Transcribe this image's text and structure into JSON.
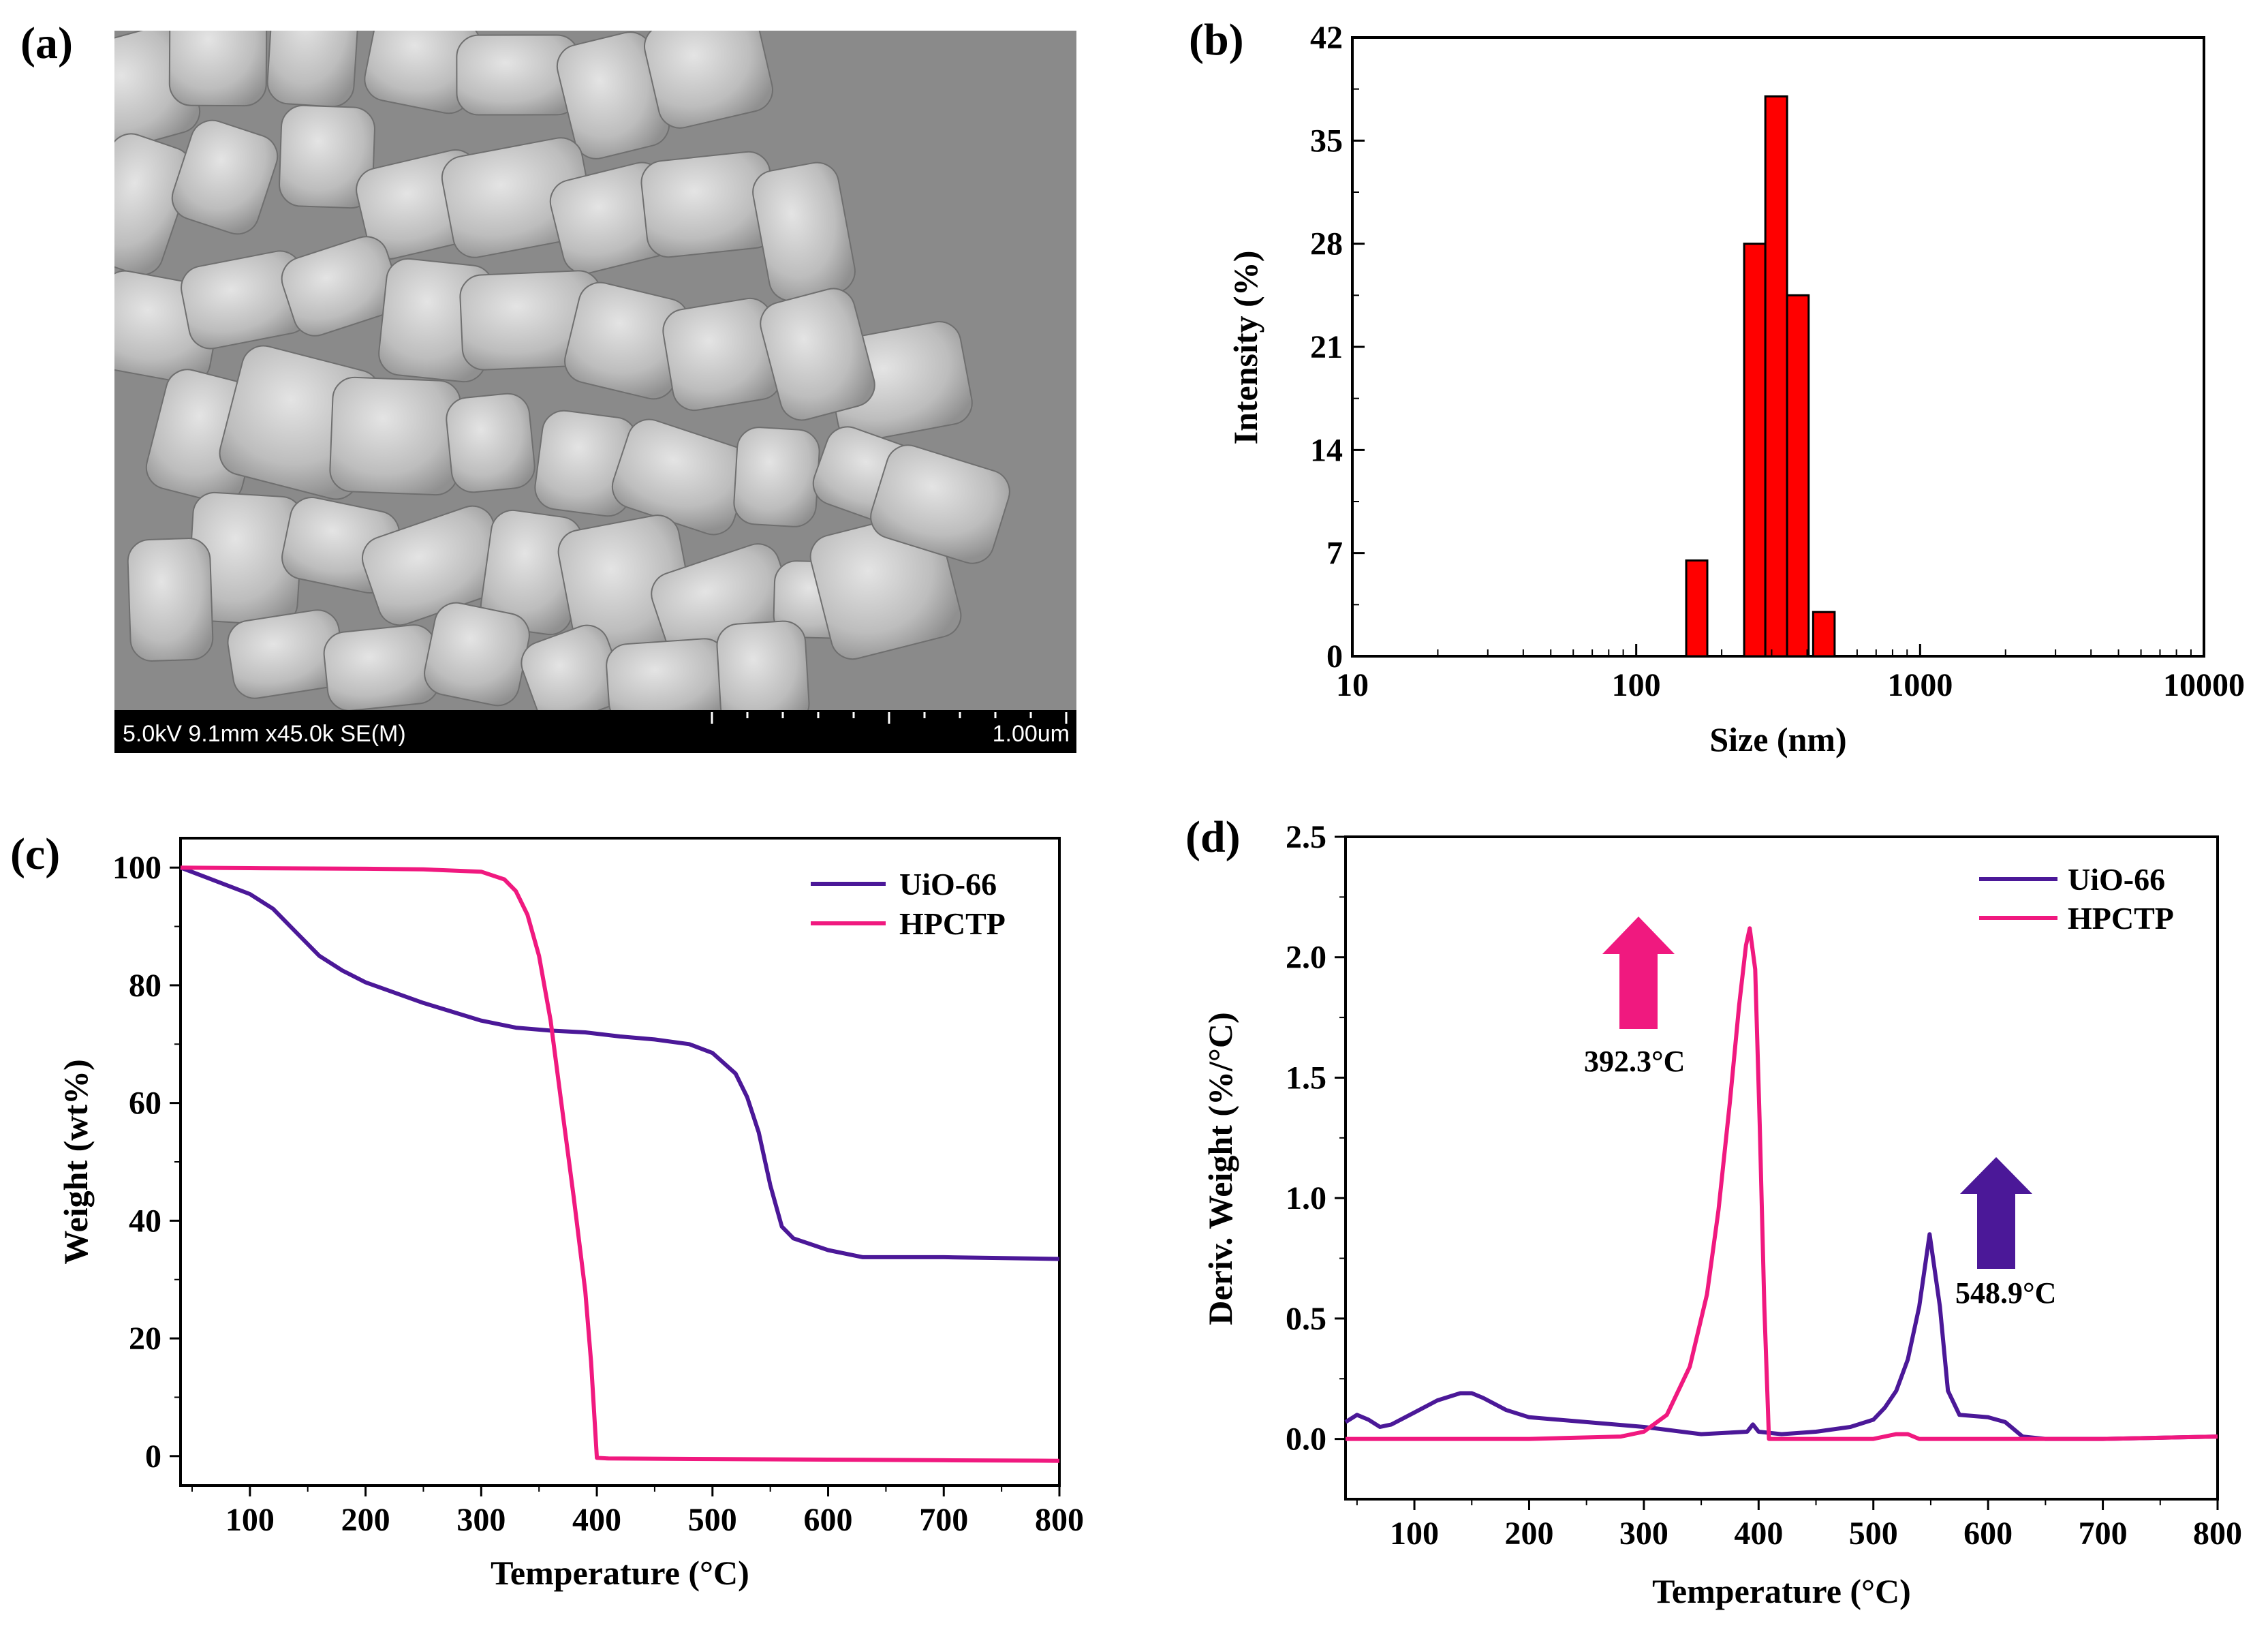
{
  "colors": {
    "uio66": "#4b1898",
    "hpctp": "#f0197f",
    "bar": "#ff0000",
    "sem_bg": "#8e8e8e"
  },
  "panel_a": {
    "label": "(a)",
    "sem_info": "5.0kV 9.1mm x45.0k SE(M)",
    "scale_bar": "1.00um"
  },
  "panel_b": {
    "label": "(b)"
  },
  "panel_c": {
    "label": "(c)"
  },
  "panel_d": {
    "label": "(d)"
  },
  "chart_data": [
    {
      "id": "b",
      "type": "bar",
      "xscale": "log",
      "xlabel": "Size (nm)",
      "ylabel": "Intensity (%)",
      "xlim": [
        10,
        10000
      ],
      "ylim": [
        0,
        42
      ],
      "xticks": [
        10,
        100,
        1000,
        10000
      ],
      "xtick_labels": [
        "10",
        "100",
        "1000",
        "10000"
      ],
      "yticks": [
        0,
        7,
        14,
        21,
        28,
        35,
        42
      ],
      "bars": [
        {
          "x0": 150,
          "x1": 178,
          "value": 6.5
        },
        {
          "x0": 240,
          "x1": 285,
          "value": 28
        },
        {
          "x0": 285,
          "x1": 340,
          "value": 38
        },
        {
          "x0": 340,
          "x1": 405,
          "value": 24.5
        },
        {
          "x0": 420,
          "x1": 500,
          "value": 3
        }
      ]
    },
    {
      "id": "c",
      "type": "line",
      "xlabel": "Temperature (°C)",
      "ylabel": "Weight (wt%)",
      "xlim": [
        40,
        800
      ],
      "ylim": [
        -5,
        105
      ],
      "xticks": [
        100,
        200,
        300,
        400,
        500,
        600,
        700,
        800
      ],
      "yticks": [
        0,
        20,
        40,
        60,
        80,
        100
      ],
      "legend_position": "top-right",
      "series": [
        {
          "name": "UiO-66",
          "color_key": "uio66",
          "x": [
            40,
            60,
            80,
            100,
            120,
            140,
            160,
            180,
            200,
            250,
            300,
            330,
            360,
            390,
            420,
            450,
            480,
            500,
            520,
            530,
            540,
            550,
            560,
            570,
            600,
            630,
            650,
            700,
            800
          ],
          "y": [
            100,
            98.5,
            97,
            95.5,
            93,
            89,
            85,
            82.5,
            80.5,
            77,
            74,
            72.8,
            72.3,
            72,
            71.3,
            70.8,
            70,
            68.5,
            65,
            61,
            55,
            46,
            39,
            37,
            35,
            33.8,
            33.8,
            33.8,
            33.5
          ]
        },
        {
          "name": "HPCTP",
          "color_key": "hpctp",
          "x": [
            40,
            100,
            200,
            250,
            300,
            320,
            330,
            340,
            350,
            360,
            370,
            380,
            390,
            395,
            400,
            410,
            500,
            600,
            700,
            800
          ],
          "y": [
            100,
            99.9,
            99.8,
            99.7,
            99.3,
            98,
            96,
            92,
            85,
            74,
            59,
            44,
            28,
            16,
            -0.3,
            -0.4,
            -0.5,
            -0.6,
            -0.7,
            -0.8
          ]
        }
      ]
    },
    {
      "id": "d",
      "type": "line",
      "xlabel": "Temperature (°C)",
      "ylabel": "Deriv. Weight (%/°C)",
      "xlim": [
        40,
        800
      ],
      "ylim": [
        -0.25,
        2.5
      ],
      "xticks": [
        100,
        200,
        300,
        400,
        500,
        600,
        700,
        800
      ],
      "yticks": [
        0.0,
        0.5,
        1.0,
        1.5,
        2.0,
        2.5
      ],
      "ytick_labels": [
        "0.0",
        "0.5",
        "1.0",
        "1.5",
        "2.0",
        "2.5"
      ],
      "legend_position": "top-right",
      "annotations": [
        {
          "text": "392.3°C",
          "x": 392.3,
          "color_key": "hpctp"
        },
        {
          "text": "548.9°C",
          "x": 548.9,
          "color_key": "uio66"
        }
      ],
      "series": [
        {
          "name": "UiO-66",
          "color_key": "uio66",
          "x": [
            40,
            50,
            60,
            70,
            80,
            100,
            120,
            140,
            150,
            160,
            180,
            200,
            250,
            300,
            350,
            390,
            395,
            400,
            420,
            450,
            480,
            500,
            510,
            520,
            530,
            540,
            549,
            558,
            565,
            575,
            600,
            615,
            630,
            650,
            700,
            800
          ],
          "y": [
            0.07,
            0.1,
            0.08,
            0.05,
            0.06,
            0.11,
            0.16,
            0.19,
            0.19,
            0.17,
            0.12,
            0.09,
            0.07,
            0.05,
            0.02,
            0.03,
            0.06,
            0.03,
            0.02,
            0.03,
            0.05,
            0.08,
            0.13,
            0.2,
            0.33,
            0.55,
            0.85,
            0.55,
            0.2,
            0.1,
            0.09,
            0.07,
            0.01,
            0.0,
            0.0,
            0.01
          ]
        },
        {
          "name": "HPCTP",
          "color_key": "hpctp",
          "x": [
            40,
            200,
            280,
            300,
            320,
            340,
            355,
            365,
            375,
            383,
            389,
            392.3,
            397,
            401,
            405,
            409,
            420,
            500,
            520,
            530,
            540,
            600,
            700,
            800
          ],
          "y": [
            0.0,
            0.0,
            0.01,
            0.03,
            0.1,
            0.3,
            0.6,
            0.95,
            1.4,
            1.8,
            2.05,
            2.12,
            1.95,
            1.3,
            0.55,
            0.0,
            0.0,
            0.0,
            0.02,
            0.02,
            0.0,
            0.0,
            0.0,
            0.01
          ]
        }
      ]
    }
  ]
}
